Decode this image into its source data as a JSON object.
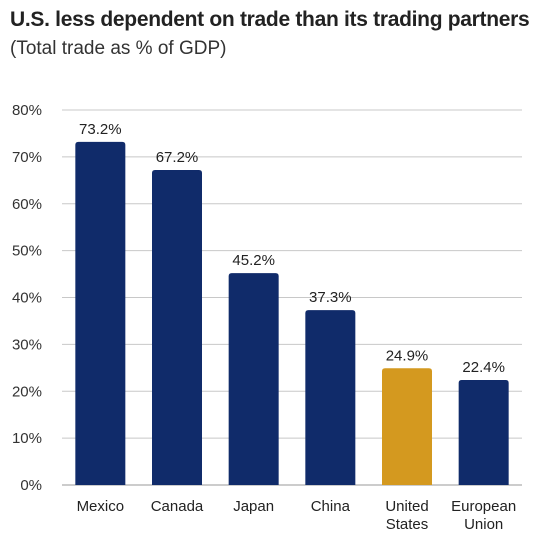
{
  "chart_data": {
    "type": "bar",
    "title": "U.S. less dependent on trade than its trading partners",
    "subtitle": "(Total trade as % of GDP)",
    "categories": [
      [
        "Mexico"
      ],
      [
        "Canada"
      ],
      [
        "Japan"
      ],
      [
        "China"
      ],
      [
        "United",
        "States"
      ],
      [
        "European",
        "Union"
      ]
    ],
    "values": [
      73.2,
      67.2,
      45.2,
      37.3,
      24.9,
      22.4
    ],
    "data_labels": [
      "73.2%",
      "67.2%",
      "45.2%",
      "37.3%",
      "24.9%",
      "22.4%"
    ],
    "bar_colors": [
      "#102b6a",
      "#102b6a",
      "#102b6a",
      "#102b6a",
      "#d4991f",
      "#102b6a"
    ],
    "ylim": [
      0,
      80
    ],
    "yticks": [
      0,
      10,
      20,
      30,
      40,
      50,
      60,
      70,
      80
    ],
    "ytick_labels": [
      "0%",
      "10%",
      "20%",
      "30%",
      "40%",
      "50%",
      "60%",
      "70%",
      "80%"
    ],
    "grid": true,
    "legend": "none",
    "grid_color": "#c8c8c8"
  }
}
